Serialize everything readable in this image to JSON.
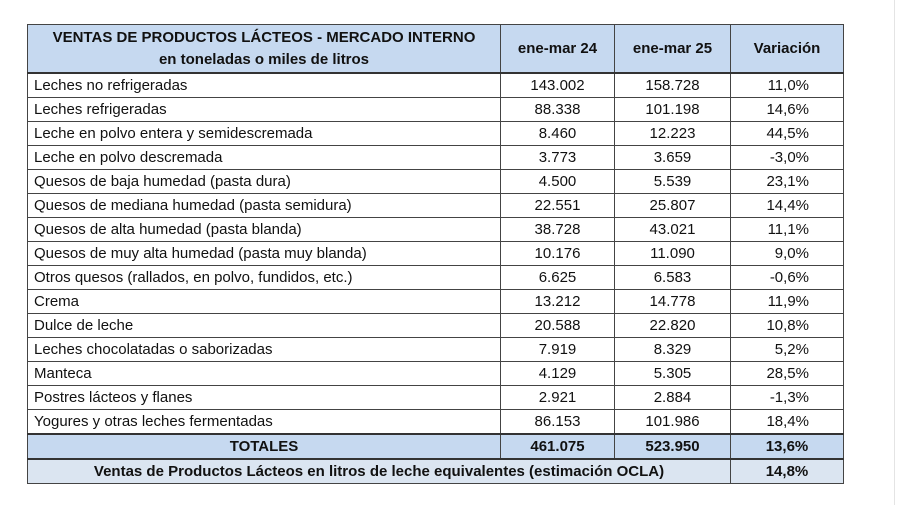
{
  "table": {
    "title": "VENTAS DE PRODUCTOS LÁCTEOS - MERCADO INTERNO",
    "subtitle": "en toneladas o miles de litros",
    "columns": [
      "ene-mar 24",
      "ene-mar 25",
      "Variación"
    ],
    "rows": [
      [
        "Leches no refrigeradas",
        "143.002",
        "158.728",
        "11,0%"
      ],
      [
        "Leches refrigeradas",
        "88.338",
        "101.198",
        "14,6%"
      ],
      [
        "Leche en polvo entera y semidescremada",
        "8.460",
        "12.223",
        "44,5%"
      ],
      [
        "Leche en polvo descremada",
        "3.773",
        "3.659",
        "-3,0%"
      ],
      [
        "Quesos de baja humedad (pasta dura)",
        "4.500",
        "5.539",
        "23,1%"
      ],
      [
        "Quesos de mediana humedad (pasta semidura)",
        "22.551",
        "25.807",
        "14,4%"
      ],
      [
        "Quesos de alta humedad (pasta blanda)",
        "38.728",
        "43.021",
        "11,1%"
      ],
      [
        "Quesos de muy alta humedad (pasta muy blanda)",
        "10.176",
        "11.090",
        "9,0%"
      ],
      [
        "Otros quesos (rallados, en polvo, fundidos, etc.)",
        "6.625",
        "6.583",
        "-0,6%"
      ],
      [
        "Crema",
        "13.212",
        "14.778",
        "11,9%"
      ],
      [
        "Dulce de leche",
        "20.588",
        "22.820",
        "10,8%"
      ],
      [
        "Leches chocolatadas o saborizadas",
        "7.919",
        "8.329",
        "5,2%"
      ],
      [
        "Manteca",
        "4.129",
        "5.305",
        "28,5%"
      ],
      [
        "Postres lácteos y flanes",
        "2.921",
        "2.884",
        "-1,3%"
      ],
      [
        "Yogures y otras leches fermentadas",
        "86.153",
        "101.986",
        "18,4%"
      ]
    ],
    "totals": [
      "TOTALES",
      "461.075",
      "523.950",
      "13,6%"
    ],
    "footer": [
      "Ventas de Productos Lácteos en litros de leche equivalentes (estimación OCLA)",
      "14,8%"
    ]
  }
}
